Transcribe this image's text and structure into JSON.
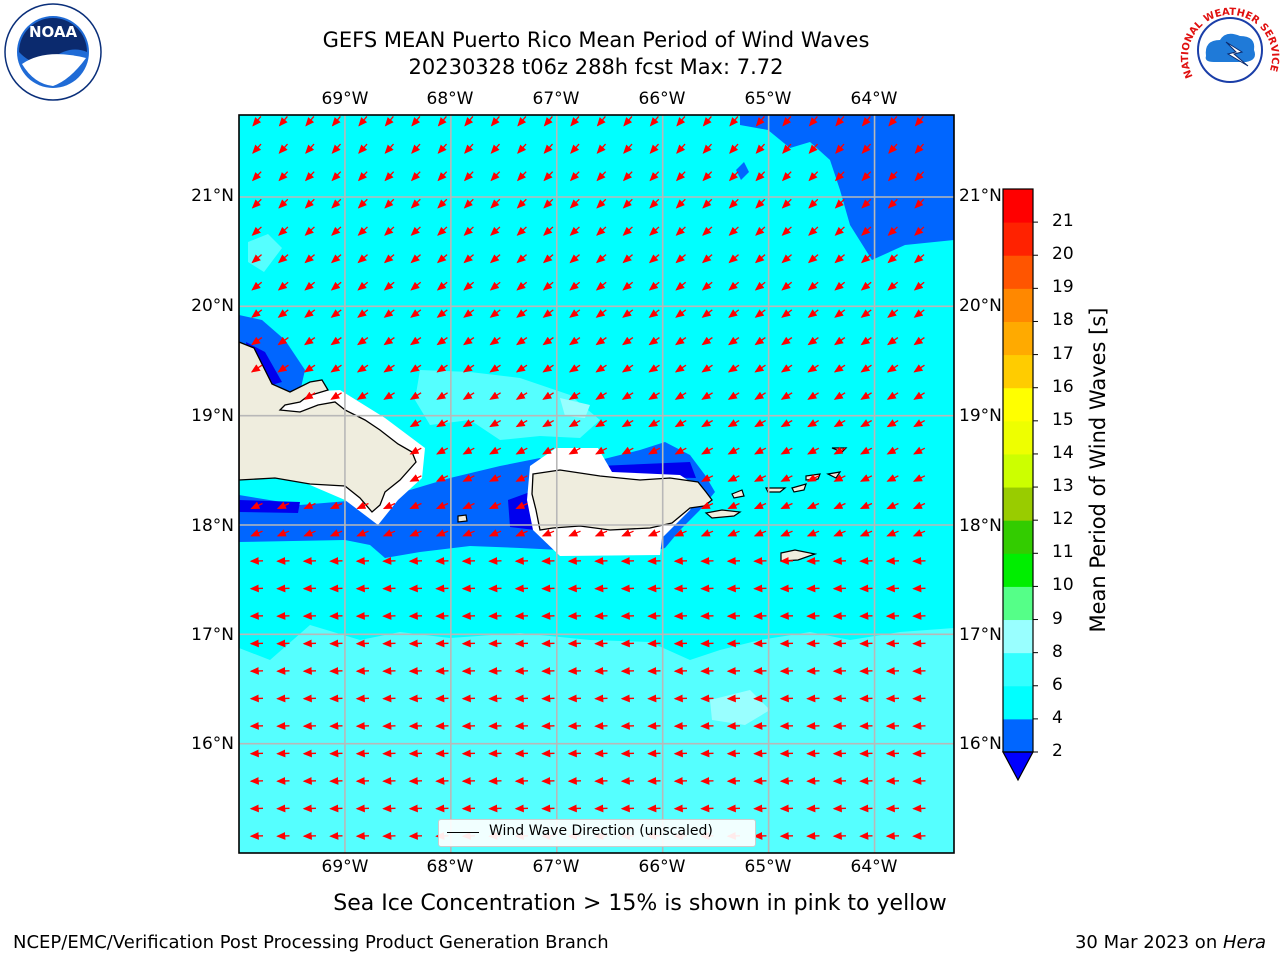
{
  "header": {
    "title_line1": "GEFS MEAN Puerto Rico Mean Period of Wind Waves",
    "title_line2": "20230328 t06z 288h fcst   Max: 7.72"
  },
  "logos": {
    "noaa_text": "NOAA",
    "nws_text": "NATIONAL WEATHER SERVICE"
  },
  "map": {
    "lon_labels": [
      "69°W",
      "68°W",
      "67°W",
      "66°W",
      "65°W",
      "64°W"
    ],
    "lat_labels": [
      "21°N",
      "20°N",
      "19°N",
      "18°N",
      "17°N",
      "16°N"
    ],
    "extent": {
      "lon_min": -70.0,
      "lon_max": -63.25,
      "lat_min": 15.0,
      "lat_max": 21.75
    },
    "land_color": "#efedde",
    "arrow_color": "#ff0000",
    "grid_color": "#b8b8b8",
    "legend_label": "Wind Wave Direction (unscaled)"
  },
  "colorbar": {
    "label": "Mean Period of Wind Waves [s]",
    "tick_labels": [
      "2",
      "4",
      "6",
      "8",
      "9",
      "10",
      "11",
      "12",
      "13",
      "14",
      "15",
      "16",
      "17",
      "18",
      "19",
      "20",
      "21"
    ],
    "colors": [
      "#0066ff",
      "#00ffff",
      "#33ffff",
      "#99ffff",
      "#55ff88",
      "#00ee00",
      "#33cc00",
      "#99cc00",
      "#ccff00",
      "#eeff00",
      "#ffff00",
      "#ffcc00",
      "#ffaa00",
      "#ff8800",
      "#ff5500",
      "#ff2200",
      "#ff0000"
    ],
    "under_color": "#0000ff"
  },
  "footer": {
    "note": "Sea Ice Concentration > 15% is shown in pink to yellow",
    "credit_left": "NCEP/EMC/Verification Post Processing Product Generation Branch",
    "credit_date": "30 Mar 2023 on ",
    "credit_host": "Hera"
  }
}
